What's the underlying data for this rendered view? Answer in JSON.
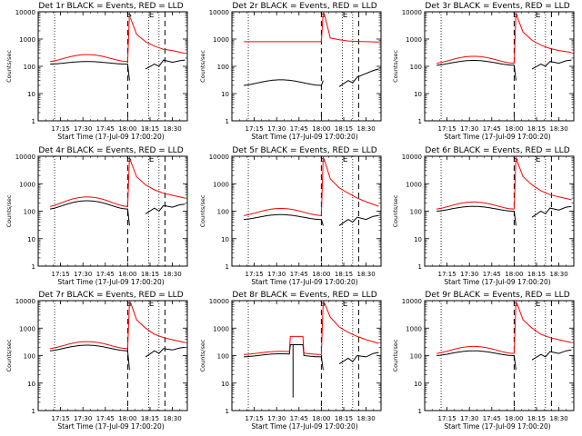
{
  "page": {
    "background": "#ffffff"
  },
  "style": {
    "events_color": "#000000",
    "lld_color": "#ff0000",
    "axis_color": "#000000"
  },
  "chart_data": [
    {
      "type": "line",
      "title": "Det 1r BLACK = Events, RED = LLD",
      "xlabel": "Start Time (17-Jul-09 17:00:20)",
      "ylabel": "Counts/sec",
      "x_ticks": [
        "17:15",
        "17:30",
        "17:45",
        "18:00",
        "18:15",
        "18:30"
      ],
      "y_ticks": [
        "1",
        "10",
        "100",
        "1000",
        "10000"
      ],
      "x_range": [
        "17:00",
        "18:40"
      ],
      "ylim": [
        1,
        10000
      ],
      "y_scale": "log",
      "markers": [
        {
          "label": "S",
          "t": "18:01"
        },
        {
          "label": "E",
          "t": "18:16"
        }
      ],
      "dotted_t": [
        "17:11",
        "18:14",
        "18:21"
      ],
      "dashed_t": [
        "18:00",
        "18:25"
      ],
      "series": [
        {
          "color": "#000000",
          "pre": {
            "base": 120,
            "amp": 1.25
          },
          "post": [
            [
              18.2,
              80
            ],
            [
              18.3,
              120
            ],
            [
              18.35,
              100
            ],
            [
              18.4,
              170
            ],
            [
              18.5,
              140
            ],
            [
              18.58,
              160
            ],
            [
              18.64,
              170
            ]
          ]
        },
        {
          "color": "#ff0000",
          "pre": {
            "base": 150,
            "amp": 1.8
          },
          "post": [
            [
              18.03,
              6000
            ],
            [
              18.1,
              1500
            ],
            [
              18.2,
              800
            ],
            [
              18.3,
              550
            ],
            [
              18.4,
              420
            ],
            [
              18.5,
              380
            ],
            [
              18.64,
              300
            ]
          ]
        }
      ]
    },
    {
      "type": "line",
      "title": "Det 2r BLACK = Events, RED = LLD",
      "xlabel": "Start Time (17-Jul-09 17:00:20)",
      "ylabel": "Counts/sec",
      "x_ticks": [
        "17:15",
        "17:30",
        "17:45",
        "18:00",
        "18:15",
        "18:30"
      ],
      "y_ticks": [
        "1",
        "10",
        "100",
        "1000",
        "10000"
      ],
      "x_range": [
        "17:00",
        "18:40"
      ],
      "ylim": [
        1,
        10000
      ],
      "y_scale": "log",
      "markers": [
        {
          "label": "S",
          "t": "18:01"
        },
        {
          "label": "E",
          "t": "18:16"
        }
      ],
      "dotted_t": [
        "17:11",
        "18:14",
        "18:21"
      ],
      "dashed_t": [
        "18:00",
        "18:25"
      ],
      "series": [
        {
          "color": "#000000",
          "pre": {
            "base": 20,
            "amp": 1.6
          },
          "post": [
            [
              18.2,
              18
            ],
            [
              18.3,
              30
            ],
            [
              18.35,
              25
            ],
            [
              18.4,
              40
            ],
            [
              18.5,
              55
            ],
            [
              18.58,
              70
            ],
            [
              18.64,
              80
            ]
          ]
        },
        {
          "color": "#ff0000",
          "pre": {
            "base": 800,
            "amp": 1.0
          },
          "post": [
            [
              18.03,
              9000
            ],
            [
              18.1,
              1100
            ],
            [
              18.2,
              950
            ],
            [
              18.3,
              850
            ],
            [
              18.4,
              820
            ],
            [
              18.5,
              800
            ],
            [
              18.64,
              780
            ]
          ]
        }
      ]
    },
    {
      "type": "line",
      "title": "Det 3r BLACK = Events, RED = LLD",
      "xlabel": "Start Time (17-Jul-09 17:00:20)",
      "ylabel": "Counts/sec",
      "x_ticks": [
        "17:15",
        "17:30",
        "17:45",
        "18:00",
        "18:15",
        "18:30"
      ],
      "y_ticks": [
        "1",
        "10",
        "100",
        "1000",
        "10000"
      ],
      "x_range": [
        "17:00",
        "18:40"
      ],
      "ylim": [
        1,
        10000
      ],
      "y_scale": "log",
      "markers": [
        {
          "label": "S",
          "t": "18:01"
        },
        {
          "label": "E",
          "t": "18:16"
        }
      ],
      "dotted_t": [
        "17:11",
        "18:14",
        "18:21"
      ],
      "dashed_t": [
        "18:00",
        "18:25"
      ],
      "series": [
        {
          "color": "#000000",
          "pre": {
            "base": 110,
            "amp": 1.5
          },
          "post": [
            [
              18.2,
              80
            ],
            [
              18.3,
              120
            ],
            [
              18.35,
              100
            ],
            [
              18.4,
              150
            ],
            [
              18.5,
              130
            ],
            [
              18.58,
              160
            ],
            [
              18.64,
              170
            ]
          ]
        },
        {
          "color": "#ff0000",
          "pre": {
            "base": 130,
            "amp": 1.8
          },
          "post": [
            [
              18.03,
              7000
            ],
            [
              18.1,
              1800
            ],
            [
              18.2,
              900
            ],
            [
              18.3,
              600
            ],
            [
              18.4,
              450
            ],
            [
              18.5,
              380
            ],
            [
              18.64,
              320
            ]
          ]
        }
      ]
    },
    {
      "type": "line",
      "title": "Det 4r BLACK = Events, RED = LLD",
      "xlabel": "Start Time (17-Jul-09 17:00:20)",
      "ylabel": "Counts/sec",
      "x_ticks": [
        "17:15",
        "17:30",
        "17:45",
        "18:00",
        "18:15",
        "18:30"
      ],
      "y_ticks": [
        "1",
        "10",
        "100",
        "1000",
        "10000"
      ],
      "x_range": [
        "17:00",
        "18:40"
      ],
      "ylim": [
        1,
        10000
      ],
      "y_scale": "log",
      "markers": [
        {
          "label": "S",
          "t": "18:01"
        },
        {
          "label": "E",
          "t": "18:16"
        }
      ],
      "dotted_t": [
        "17:11",
        "18:14",
        "18:21"
      ],
      "dashed_t": [
        "18:00",
        "18:25"
      ],
      "series": [
        {
          "color": "#000000",
          "pre": {
            "base": 120,
            "amp": 2.0
          },
          "post": [
            [
              18.2,
              80
            ],
            [
              18.3,
              130
            ],
            [
              18.35,
              100
            ],
            [
              18.4,
              160
            ],
            [
              18.5,
              140
            ],
            [
              18.58,
              170
            ],
            [
              18.64,
              180
            ]
          ]
        },
        {
          "color": "#ff0000",
          "pre": {
            "base": 150,
            "amp": 2.2
          },
          "post": [
            [
              18.03,
              7000
            ],
            [
              18.1,
              1800
            ],
            [
              18.2,
              900
            ],
            [
              18.3,
              600
            ],
            [
              18.4,
              450
            ],
            [
              18.5,
              380
            ],
            [
              18.64,
              300
            ]
          ]
        }
      ]
    },
    {
      "type": "line",
      "title": "Det 5r BLACK = Events, RED = LLD",
      "xlabel": "Start Time (17-Jul-09 17:00:20)",
      "ylabel": "Counts/sec",
      "x_ticks": [
        "17:15",
        "17:30",
        "17:45",
        "18:00",
        "18:15",
        "18:30"
      ],
      "y_ticks": [
        "1",
        "10",
        "100",
        "1000",
        "10000"
      ],
      "x_range": [
        "17:00",
        "18:40"
      ],
      "ylim": [
        1,
        10000
      ],
      "y_scale": "log",
      "markers": [
        {
          "label": "S",
          "t": "18:01"
        },
        {
          "label": "E",
          "t": "18:16"
        }
      ],
      "dotted_t": [
        "17:11",
        "18:14",
        "18:21"
      ],
      "dashed_t": [
        "18:00",
        "18:25"
      ],
      "series": [
        {
          "color": "#000000",
          "pre": {
            "base": 50,
            "amp": 1.5
          },
          "post": [
            [
              18.2,
              30
            ],
            [
              18.3,
              50
            ],
            [
              18.35,
              40
            ],
            [
              18.4,
              60
            ],
            [
              18.5,
              50
            ],
            [
              18.58,
              65
            ],
            [
              18.64,
              70
            ]
          ]
        },
        {
          "color": "#ff0000",
          "pre": {
            "base": 70,
            "amp": 1.8
          },
          "post": [
            [
              18.03,
              8000
            ],
            [
              18.1,
              1500
            ],
            [
              18.2,
              700
            ],
            [
              18.3,
              450
            ],
            [
              18.4,
              300
            ],
            [
              18.5,
              220
            ],
            [
              18.64,
              150
            ]
          ]
        }
      ]
    },
    {
      "type": "line",
      "title": "Det 6r BLACK = Events, RED = LLD",
      "xlabel": "Start Time (17-Jul-09 17:00:20)",
      "ylabel": "Counts/sec",
      "x_ticks": [
        "17:15",
        "17:30",
        "17:45",
        "18:00",
        "18:15",
        "18:30"
      ],
      "y_ticks": [
        "1",
        "10",
        "100",
        "1000",
        "10000"
      ],
      "x_range": [
        "17:00",
        "18:40"
      ],
      "ylim": [
        1,
        10000
      ],
      "y_scale": "log",
      "markers": [
        {
          "label": "S",
          "t": "18:01"
        },
        {
          "label": "E",
          "t": "18:16"
        }
      ],
      "dotted_t": [
        "17:11",
        "18:14",
        "18:21"
      ],
      "dashed_t": [
        "18:00",
        "18:25"
      ],
      "series": [
        {
          "color": "#000000",
          "pre": {
            "base": 100,
            "amp": 1.5
          },
          "post": [
            [
              18.2,
              60
            ],
            [
              18.3,
              100
            ],
            [
              18.35,
              80
            ],
            [
              18.4,
              130
            ],
            [
              18.5,
              110
            ],
            [
              18.58,
              140
            ],
            [
              18.64,
              150
            ]
          ]
        },
        {
          "color": "#ff0000",
          "pre": {
            "base": 120,
            "amp": 1.8
          },
          "post": [
            [
              18.03,
              7000
            ],
            [
              18.1,
              1800
            ],
            [
              18.2,
              900
            ],
            [
              18.3,
              550
            ],
            [
              18.4,
              400
            ],
            [
              18.5,
              330
            ],
            [
              18.64,
              260
            ]
          ]
        }
      ]
    },
    {
      "type": "line",
      "title": "Det 7r BLACK = Events, RED = LLD",
      "xlabel": "Start Time (17-Jul-09 17:00:20)",
      "ylabel": "Counts/sec",
      "x_ticks": [
        "17:15",
        "17:30",
        "17:45",
        "18:00",
        "18:15",
        "18:30"
      ],
      "y_ticks": [
        "1",
        "10",
        "100",
        "1000",
        "10000"
      ],
      "x_range": [
        "17:00",
        "18:40"
      ],
      "ylim": [
        1,
        10000
      ],
      "y_scale": "log",
      "markers": [
        {
          "label": "S",
          "t": "18:01"
        },
        {
          "label": "E",
          "t": "18:16"
        }
      ],
      "dotted_t": [
        "17:11",
        "18:14",
        "18:21"
      ],
      "dashed_t": [
        "18:00",
        "18:25"
      ],
      "series": [
        {
          "color": "#000000",
          "pre": {
            "base": 150,
            "amp": 1.6
          },
          "post": [
            [
              18.2,
              90
            ],
            [
              18.3,
              150
            ],
            [
              18.35,
              120
            ],
            [
              18.4,
              180
            ],
            [
              18.5,
              160
            ],
            [
              18.58,
              190
            ],
            [
              18.64,
              200
            ]
          ]
        },
        {
          "color": "#ff0000",
          "pre": {
            "base": 180,
            "amp": 1.8
          },
          "post": [
            [
              18.03,
              9000
            ],
            [
              18.1,
              2000
            ],
            [
              18.2,
              1000
            ],
            [
              18.3,
              600
            ],
            [
              18.4,
              450
            ],
            [
              18.5,
              380
            ],
            [
              18.64,
              300
            ]
          ]
        }
      ]
    },
    {
      "type": "line",
      "title": "Det 8r BLACK = Events, RED = LLD",
      "xlabel": "Start Time (17-Jul-09 17:00:20)",
      "ylabel": "Counts/sec",
      "x_ticks": [
        "17:15",
        "17:30",
        "17:45",
        "18:00",
        "18:15",
        "18:30"
      ],
      "y_ticks": [
        "1",
        "10",
        "100",
        "1000",
        "10000"
      ],
      "x_range": [
        "17:00",
        "18:40"
      ],
      "ylim": [
        1,
        10000
      ],
      "y_scale": "log",
      "markers": [
        {
          "label": "S",
          "t": "18:01"
        },
        {
          "label": "E",
          "t": "18:16"
        }
      ],
      "dotted_t": [
        "17:11",
        "18:14",
        "18:21"
      ],
      "dashed_t": [
        "18:00",
        "18:25"
      ],
      "spike": {
        "t_start": "17:39",
        "t_end": "17:48",
        "red_level": 500,
        "black_level": 250,
        "dip_t": "17:41",
        "dip_value": 3
      },
      "series": [
        {
          "color": "#000000",
          "pre": {
            "base": 90,
            "amp": 1.3
          },
          "post": [
            [
              18.2,
              50
            ],
            [
              18.3,
              80
            ],
            [
              18.35,
              60
            ],
            [
              18.4,
              100
            ],
            [
              18.5,
              90
            ],
            [
              18.58,
              120
            ],
            [
              18.64,
              130
            ]
          ]
        },
        {
          "color": "#ff0000",
          "pre": {
            "base": 110,
            "amp": 1.3
          },
          "post": [
            [
              18.03,
              9000
            ],
            [
              18.1,
              2500
            ],
            [
              18.2,
              1100
            ],
            [
              18.3,
              700
            ],
            [
              18.4,
              500
            ],
            [
              18.5,
              380
            ],
            [
              18.64,
              280
            ]
          ]
        }
      ]
    },
    {
      "type": "line",
      "title": "Det 9r BLACK = Events, RED = LLD",
      "xlabel": "Start Time (17-Jul-09 17:00:20)",
      "ylabel": "Counts/sec",
      "x_ticks": [
        "17:15",
        "17:30",
        "17:45",
        "18:00",
        "18:15",
        "18:30"
      ],
      "y_ticks": [
        "1",
        "10",
        "100",
        "1000",
        "10000"
      ],
      "x_range": [
        "17:00",
        "18:40"
      ],
      "ylim": [
        1,
        10000
      ],
      "y_scale": "log",
      "markers": [
        {
          "label": "S",
          "t": "18:01"
        },
        {
          "label": "E",
          "t": "18:16"
        }
      ],
      "dotted_t": [
        "17:11",
        "18:14",
        "18:21"
      ],
      "dashed_t": [
        "18:00",
        "18:25"
      ],
      "series": [
        {
          "color": "#000000",
          "pre": {
            "base": 100,
            "amp": 1.5
          },
          "post": [
            [
              18.2,
              70
            ],
            [
              18.3,
              110
            ],
            [
              18.35,
              90
            ],
            [
              18.4,
              140
            ],
            [
              18.5,
              120
            ],
            [
              18.58,
              150
            ],
            [
              18.64,
              160
            ]
          ]
        },
        {
          "color": "#ff0000",
          "pre": {
            "base": 120,
            "amp": 1.8
          },
          "post": [
            [
              18.03,
              8000
            ],
            [
              18.1,
              2000
            ],
            [
              18.2,
              1000
            ],
            [
              18.3,
              600
            ],
            [
              18.4,
              450
            ],
            [
              18.5,
              380
            ],
            [
              18.64,
              300
            ]
          ]
        }
      ]
    }
  ]
}
